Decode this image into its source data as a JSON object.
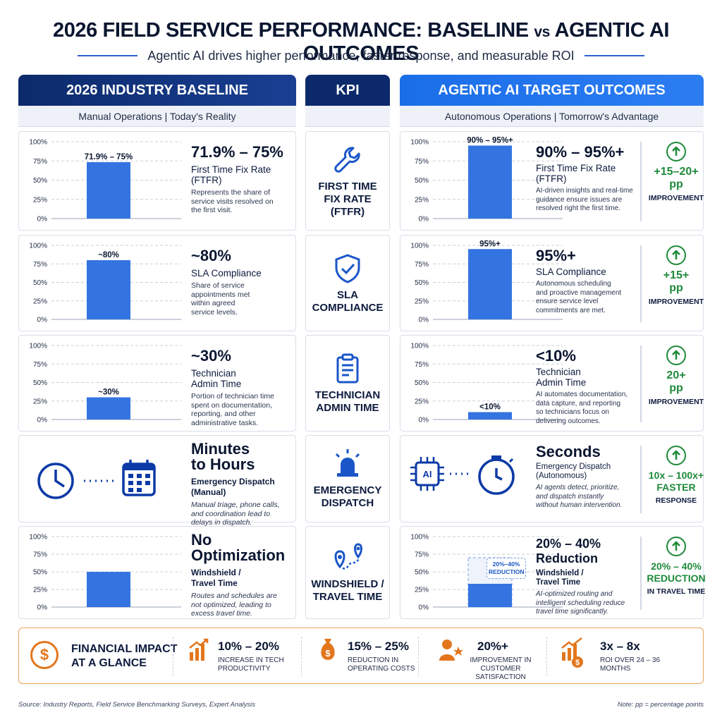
{
  "header": {
    "title_main": "2026 FIELD SERVICE PERFORMANCE: BASELINE ",
    "title_vs": "vs",
    "title_end": " AGENTIC AI OUTCOMES",
    "subtitle": "Agentic AI drives higher performance, faster response, and measurable ROI"
  },
  "columns": {
    "baseline": {
      "title": "2026 INDUSTRY BASELINE",
      "subtitle": "Manual Operations  |  Today's Reality"
    },
    "kpi": {
      "title": "KPI"
    },
    "agentic": {
      "title": "AGENTIC AI TARGET OUTCOMES",
      "subtitle": "Autonomous Operations  |  Tomorrow's Advantage"
    }
  },
  "colors": {
    "navy": "#0c2a6b",
    "blue": "#1a6ee8",
    "bar": "#3474e0",
    "green": "#1e8a3a",
    "orange": "#e3761c"
  },
  "axis_ticks": [
    "100%",
    "75%",
    "50%",
    "25%",
    "0%"
  ],
  "kpis": [
    {
      "label": "FIRST TIME\nFIX RATE\n(FTFR)",
      "icon": "wrench-icon",
      "baseline": {
        "big": "71.9% – 75%",
        "name": "First Time Fix Rate\n(FTFR)",
        "desc": "Represents the share of\nservice visits resolved on\nthe first visit.",
        "bar_label": "71.9% – 75%"
      },
      "agentic": {
        "big": "90% – 95%+",
        "name": "First Time Fix Rate\n(FTFR)",
        "desc": "AI-driven insights and real-time\nguidance ensure issues are\nresolved right the first time.",
        "bar_label": "90% – 95%+"
      },
      "improvement": {
        "value": "+15–20+\npp",
        "text": "IMPROVEMENT"
      }
    },
    {
      "label": "SLA\nCOMPLIANCE",
      "icon": "shield-check-icon",
      "baseline": {
        "big": "~80%",
        "name": "SLA Compliance",
        "desc": "Share of service\nappointments met\nwithin agreed\nservice levels.",
        "bar_label": "~80%"
      },
      "agentic": {
        "big": "95%+",
        "name": "SLA Compliance",
        "desc": "Autonomous scheduling\nand proactive management\nensure service level\ncommitments are met.",
        "bar_label": "95%+"
      },
      "improvement": {
        "value": "+15+\npp",
        "text": "IMPROVEMENT"
      }
    },
    {
      "label": "TECHNICIAN\nADMIN TIME",
      "icon": "clipboard-icon",
      "baseline": {
        "big": "~30%",
        "name": "Technician\nAdmin Time",
        "desc": "Portion of technician time\nspent on documentation,\nreporting, and other\nadministrative tasks.",
        "bar_label": "~30%"
      },
      "agentic": {
        "big": "<10%",
        "name": "Technician\nAdmin Time",
        "desc": "AI automates documentation,\ndata capture, and reporting\nso technicians focus on\ndelivering outcomes.",
        "bar_label": "<10%"
      },
      "improvement": {
        "value": "20+\npp",
        "text": "IMPROVEMENT"
      }
    },
    {
      "label": "EMERGENCY\nDISPATCH",
      "icon": "siren-icon",
      "baseline": {
        "big": "Minutes\nto Hours",
        "name": "Emergency Dispatch\n(Manual)",
        "desc": "Manual triage, phone calls,\nand coordination lead to\ndelays in dispatch."
      },
      "agentic": {
        "big": "Seconds",
        "name": "Emergency Dispatch\n(Autonomous)",
        "desc": "AI agents detect, prioritize,\nand dispatch instantly\nwithout human intervention.",
        "chip": "AI"
      },
      "improvement": {
        "value": "10x – 100x+\nFASTER",
        "text": "RESPONSE"
      }
    },
    {
      "label": "WINDSHIELD /\nTRAVEL TIME",
      "icon": "route-pins-icon",
      "baseline": {
        "big": "No\nOptimization",
        "name": "Windshield /\nTravel Time",
        "desc": "Routes and schedules are\nnot optimized, leading to\nexcess travel time."
      },
      "agentic": {
        "big": "20% – 40%\nReduction",
        "name": "Windshield /\nTravel Time",
        "desc": "AI-optimized routing and\nintelligent scheduling reduce\ntravel time significantly.",
        "callout": "20%–40%\nREDUCTION"
      },
      "improvement": {
        "value": "20% – 40%\nREDUCTION",
        "text": "IN TRAVEL TIME"
      }
    }
  ],
  "chart_data": [
    {
      "type": "bar",
      "title": "First Time Fix Rate (FTFR) — Baseline",
      "categories": [
        "Baseline"
      ],
      "values": [
        73.45
      ],
      "data_labels": [
        "71.9% – 75%"
      ],
      "ylim": [
        0,
        100
      ]
    },
    {
      "type": "bar",
      "title": "First Time Fix Rate (FTFR) — Agentic AI",
      "categories": [
        "Agentic AI"
      ],
      "values": [
        95
      ],
      "data_labels": [
        "90% – 95%+"
      ],
      "ylim": [
        0,
        100
      ]
    },
    {
      "type": "bar",
      "title": "SLA Compliance — Baseline",
      "categories": [
        "Baseline"
      ],
      "values": [
        80
      ],
      "data_labels": [
        "~80%"
      ],
      "ylim": [
        0,
        100
      ]
    },
    {
      "type": "bar",
      "title": "SLA Compliance — Agentic AI",
      "categories": [
        "Agentic AI"
      ],
      "values": [
        95
      ],
      "data_labels": [
        "95%+"
      ],
      "ylim": [
        0,
        100
      ]
    },
    {
      "type": "bar",
      "title": "Technician Admin Time — Baseline",
      "categories": [
        "Baseline"
      ],
      "values": [
        30
      ],
      "data_labels": [
        "~30%"
      ],
      "ylim": [
        0,
        100
      ]
    },
    {
      "type": "bar",
      "title": "Technician Admin Time — Agentic AI",
      "categories": [
        "Agentic AI"
      ],
      "values": [
        10
      ],
      "data_labels": [
        "<10%"
      ],
      "ylim": [
        0,
        100
      ]
    },
    {
      "type": "bar",
      "title": "Windshield / Travel Time — Baseline",
      "categories": [
        "Baseline"
      ],
      "values": [
        50
      ],
      "ylim": [
        0,
        100
      ]
    },
    {
      "type": "bar",
      "title": "Windshield / Travel Time — Agentic AI",
      "categories": [
        "Agentic AI"
      ],
      "values": [
        33
      ],
      "ghost_value": 70,
      "ylim": [
        0,
        100
      ]
    }
  ],
  "financial": {
    "title": "FINANCIAL IMPACT\nAT A GLANCE",
    "items": [
      {
        "icon": "bar-growth-icon",
        "value": "10% – 20%",
        "text": "INCREASE IN TECH\nPRODUCTIVITY"
      },
      {
        "icon": "money-bag-icon",
        "value": "15% – 25%",
        "text": "REDUCTION IN\nOPERATING COSTS"
      },
      {
        "icon": "customer-star-icon",
        "value": "20%+",
        "text": "IMPROVEMENT IN\nCUSTOMER SATISFACTION"
      },
      {
        "icon": "roi-chart-icon",
        "value": "3x – 8x",
        "text": "ROI OVER 24 – 36\nMONTHS"
      }
    ]
  },
  "footer": {
    "source": "Source: Industry Reports, Field Service Benchmarking Surveys, Expert Analysis",
    "note": "Note: pp  = percentage points"
  }
}
